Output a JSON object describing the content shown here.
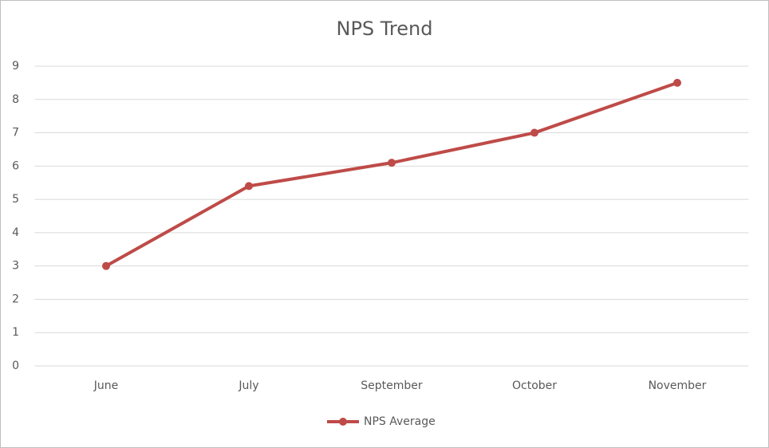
{
  "chart_data": {
    "type": "line",
    "title": "NPS Trend",
    "categories": [
      "June",
      "July",
      "September",
      "October",
      "November"
    ],
    "series": [
      {
        "name": "NPS Average",
        "color": "#be4b48",
        "values": [
          3,
          5.4,
          6.1,
          7,
          8.5
        ]
      }
    ],
    "ylim": [
      0,
      9
    ],
    "yticks": [
      0,
      1,
      2,
      3,
      4,
      5,
      6,
      7,
      8,
      9
    ],
    "grid": true,
    "legend": "bottom"
  }
}
